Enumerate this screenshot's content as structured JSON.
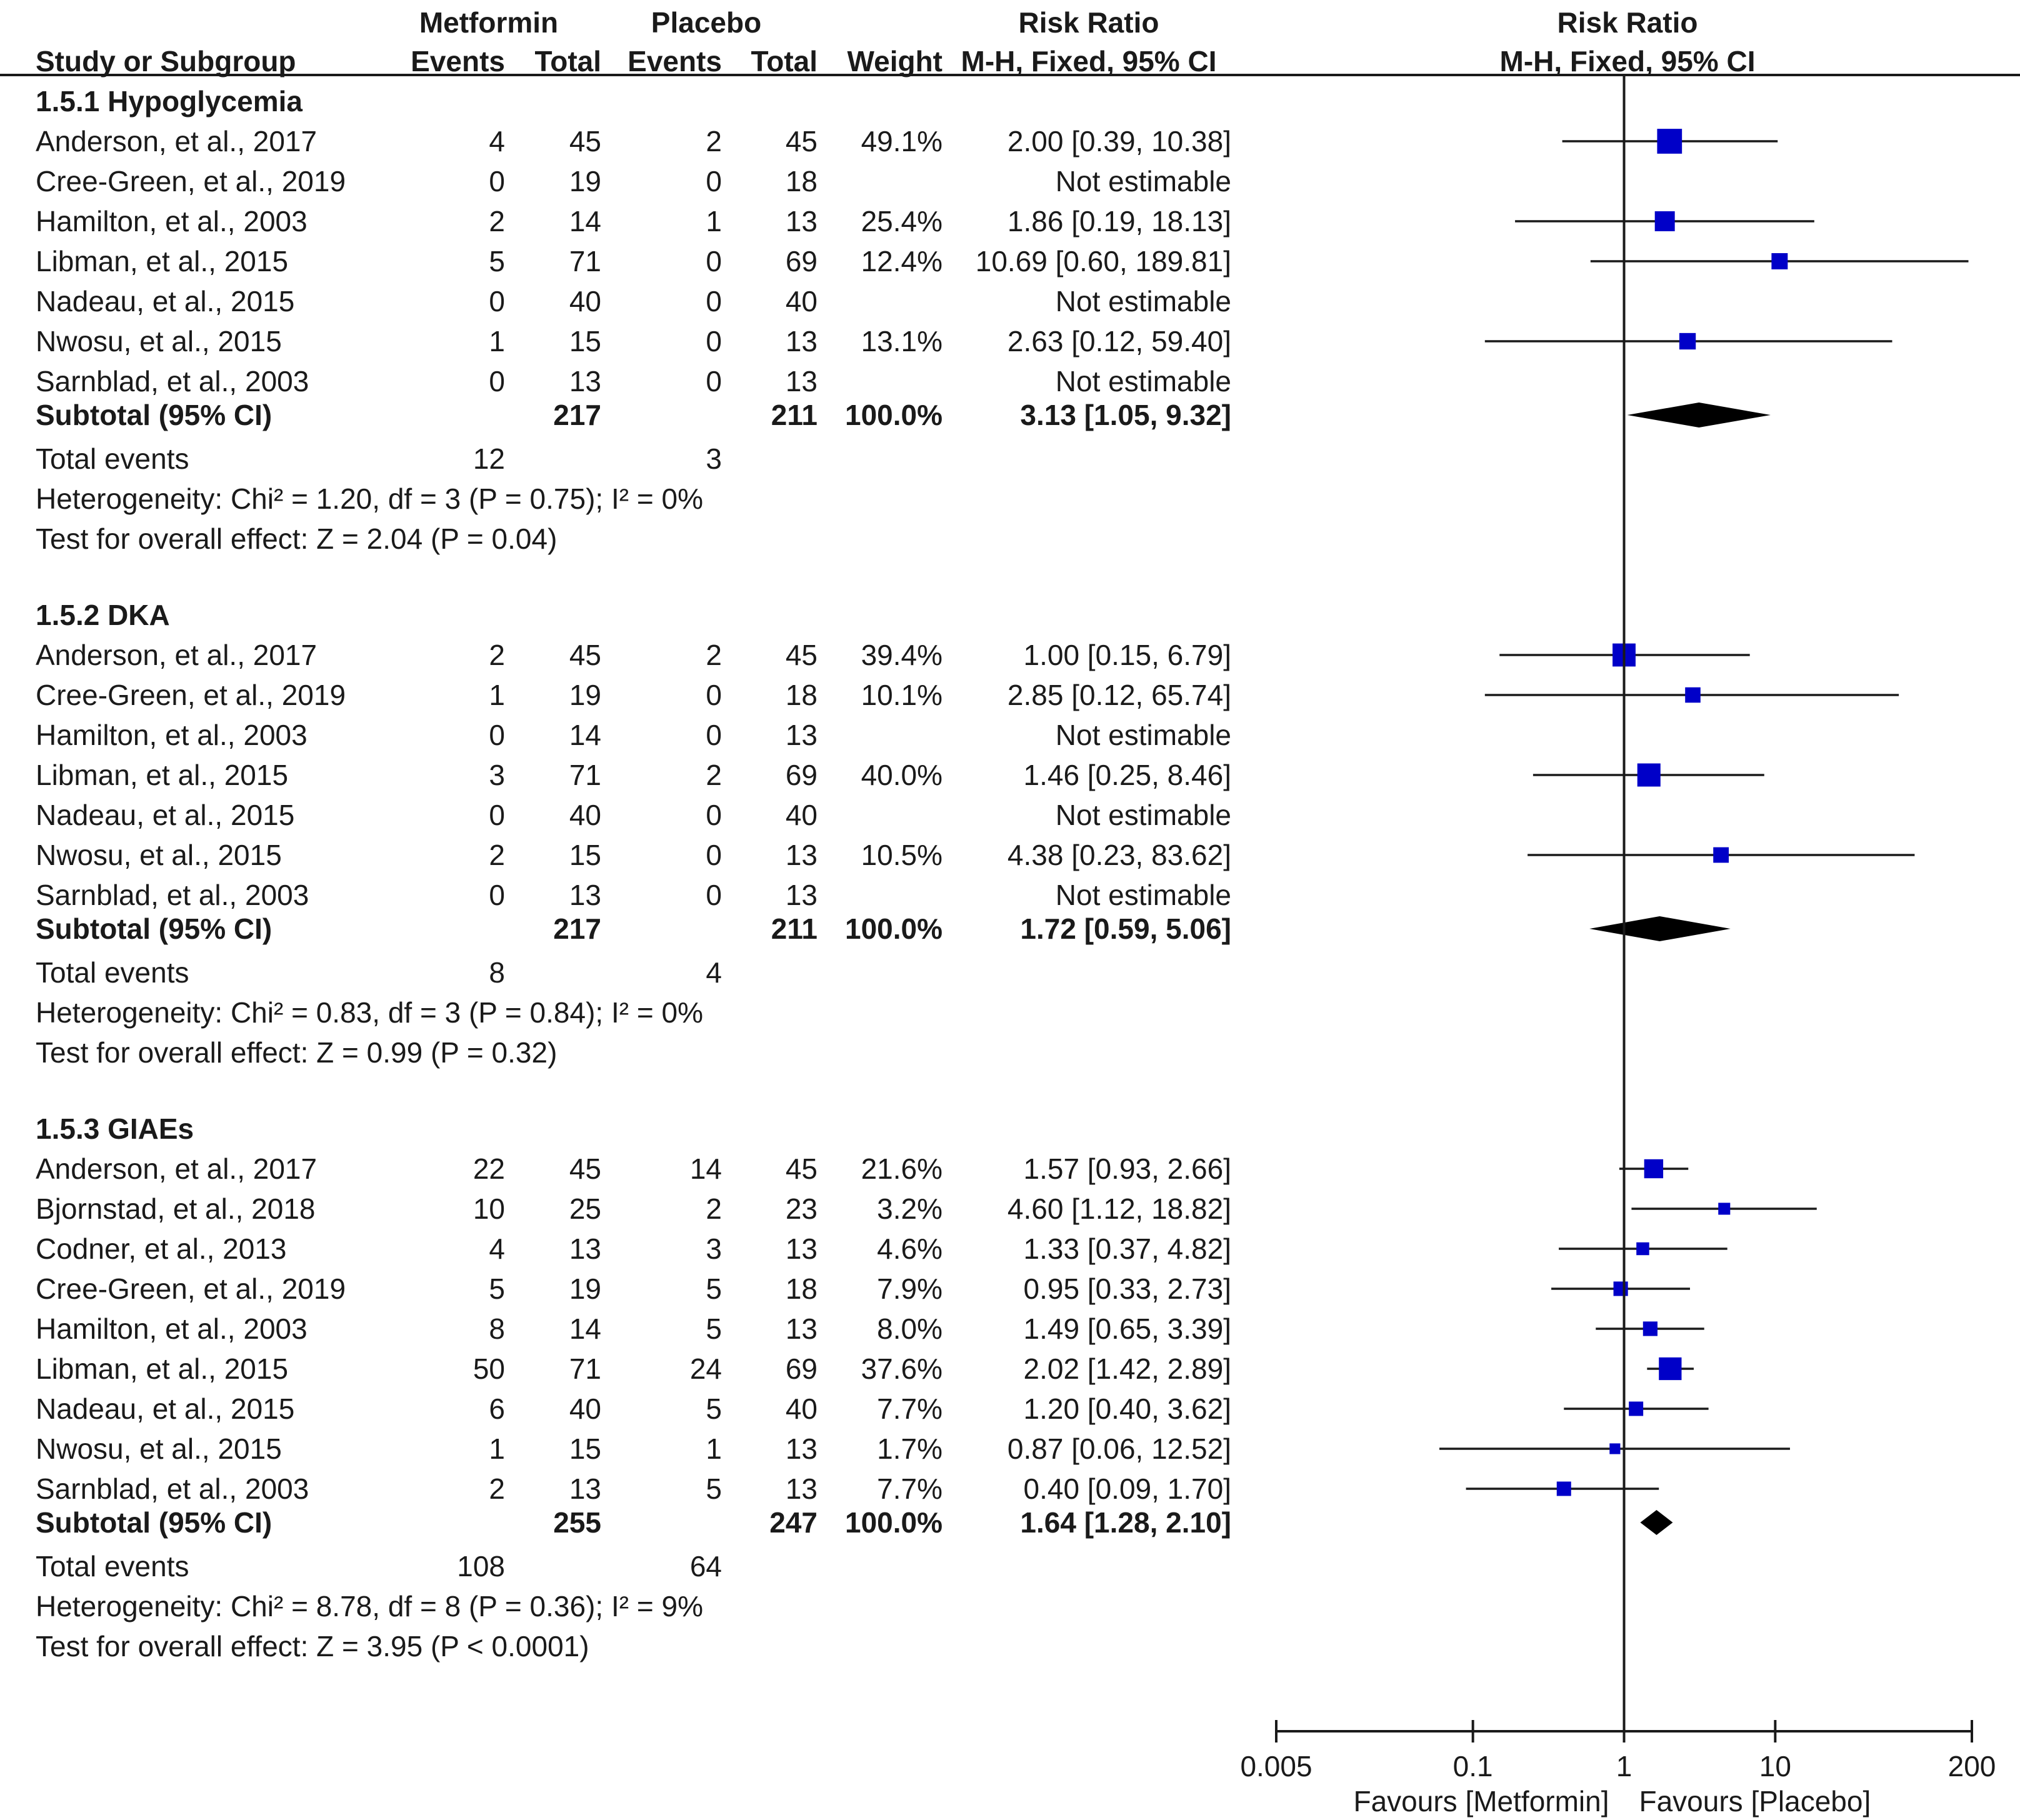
{
  "chart_data": {
    "type": "forest",
    "title": "",
    "headers": {
      "group_metformin": "Metformin",
      "group_placebo": "Placebo",
      "group_rr": "Risk Ratio",
      "study": "Study or Subgroup",
      "events": "Events",
      "total": "Total",
      "weight": "Weight",
      "method": "M-H, Fixed, 95% CI",
      "plot_title": "Risk Ratio",
      "plot_method": "M-H, Fixed, 95% CI"
    },
    "subgroups": [
      {
        "name": "1.5.1 Hypoglycemia",
        "studies": [
          {
            "study": "Anderson, et al., 2017",
            "e1": "4",
            "n1": "45",
            "e2": "2",
            "n2": "45",
            "weight": "49.1%",
            "ci_text": "2.00 [0.39, 10.38]",
            "rr": 2.0,
            "lo": 0.39,
            "hi": 10.38,
            "w": 49.1
          },
          {
            "study": "Cree-Green, et al., 2019",
            "e1": "0",
            "n1": "19",
            "e2": "0",
            "n2": "18",
            "weight": "",
            "ci_text": "Not estimable",
            "rr": null,
            "lo": null,
            "hi": null,
            "w": 0
          },
          {
            "study": "Hamilton, et al., 2003",
            "e1": "2",
            "n1": "14",
            "e2": "1",
            "n2": "13",
            "weight": "25.4%",
            "ci_text": "1.86 [0.19, 18.13]",
            "rr": 1.86,
            "lo": 0.19,
            "hi": 18.13,
            "w": 25.4
          },
          {
            "study": "Libman, et al., 2015",
            "e1": "5",
            "n1": "71",
            "e2": "0",
            "n2": "69",
            "weight": "12.4%",
            "ci_text": "10.69 [0.60, 189.81]",
            "rr": 10.69,
            "lo": 0.6,
            "hi": 189.81,
            "w": 12.4
          },
          {
            "study": "Nadeau, et al., 2015",
            "e1": "0",
            "n1": "40",
            "e2": "0",
            "n2": "40",
            "weight": "",
            "ci_text": "Not estimable",
            "rr": null,
            "lo": null,
            "hi": null,
            "w": 0
          },
          {
            "study": "Nwosu, et al., 2015",
            "e1": "1",
            "n1": "15",
            "e2": "0",
            "n2": "13",
            "weight": "13.1%",
            "ci_text": "2.63 [0.12, 59.40]",
            "rr": 2.63,
            "lo": 0.12,
            "hi": 59.4,
            "w": 13.1
          },
          {
            "study": "Sarnblad, et al., 2003",
            "e1": "0",
            "n1": "13",
            "e2": "0",
            "n2": "13",
            "weight": "",
            "ci_text": "Not estimable",
            "rr": null,
            "lo": null,
            "hi": null,
            "w": 0
          }
        ],
        "subtotal": {
          "label": "Subtotal (95% CI)",
          "n1": "217",
          "n2": "211",
          "weight": "100.0%",
          "ci_text": "3.13 [1.05, 9.32]",
          "rr": 3.13,
          "lo": 1.05,
          "hi": 9.32
        },
        "total_events": {
          "label": "Total events",
          "e1": "12",
          "e2": "3"
        },
        "heterogeneity": "Heterogeneity: Chi² = 1.20, df = 3 (P = 0.75); I² = 0%",
        "overall": "Test for overall effect: Z = 2.04 (P = 0.04)"
      },
      {
        "name": "1.5.2 DKA",
        "studies": [
          {
            "study": "Anderson, et al., 2017",
            "e1": "2",
            "n1": "45",
            "e2": "2",
            "n2": "45",
            "weight": "39.4%",
            "ci_text": "1.00 [0.15, 6.79]",
            "rr": 1.0,
            "lo": 0.15,
            "hi": 6.79,
            "w": 39.4
          },
          {
            "study": "Cree-Green, et al., 2019",
            "e1": "1",
            "n1": "19",
            "e2": "0",
            "n2": "18",
            "weight": "10.1%",
            "ci_text": "2.85 [0.12, 65.74]",
            "rr": 2.85,
            "lo": 0.12,
            "hi": 65.74,
            "w": 10.1
          },
          {
            "study": "Hamilton, et al., 2003",
            "e1": "0",
            "n1": "14",
            "e2": "0",
            "n2": "13",
            "weight": "",
            "ci_text": "Not estimable",
            "rr": null,
            "lo": null,
            "hi": null,
            "w": 0
          },
          {
            "study": "Libman, et al., 2015",
            "e1": "3",
            "n1": "71",
            "e2": "2",
            "n2": "69",
            "weight": "40.0%",
            "ci_text": "1.46 [0.25, 8.46]",
            "rr": 1.46,
            "lo": 0.25,
            "hi": 8.46,
            "w": 40.0
          },
          {
            "study": "Nadeau, et al., 2015",
            "e1": "0",
            "n1": "40",
            "e2": "0",
            "n2": "40",
            "weight": "",
            "ci_text": "Not estimable",
            "rr": null,
            "lo": null,
            "hi": null,
            "w": 0
          },
          {
            "study": "Nwosu, et al., 2015",
            "e1": "2",
            "n1": "15",
            "e2": "0",
            "n2": "13",
            "weight": "10.5%",
            "ci_text": "4.38 [0.23, 83.62]",
            "rr": 4.38,
            "lo": 0.23,
            "hi": 83.62,
            "w": 10.5
          },
          {
            "study": "Sarnblad, et al., 2003",
            "e1": "0",
            "n1": "13",
            "e2": "0",
            "n2": "13",
            "weight": "",
            "ci_text": "Not estimable",
            "rr": null,
            "lo": null,
            "hi": null,
            "w": 0
          }
        ],
        "subtotal": {
          "label": "Subtotal (95% CI)",
          "n1": "217",
          "n2": "211",
          "weight": "100.0%",
          "ci_text": "1.72 [0.59, 5.06]",
          "rr": 1.72,
          "lo": 0.59,
          "hi": 5.06
        },
        "total_events": {
          "label": "Total events",
          "e1": "8",
          "e2": "4"
        },
        "heterogeneity": "Heterogeneity: Chi² = 0.83, df = 3 (P = 0.84); I² = 0%",
        "overall": "Test for overall effect: Z = 0.99 (P = 0.32)"
      },
      {
        "name": "1.5.3 GIAEs",
        "studies": [
          {
            "study": "Anderson, et al., 2017",
            "e1": "22",
            "n1": "45",
            "e2": "14",
            "n2": "45",
            "weight": "21.6%",
            "ci_text": "1.57 [0.93, 2.66]",
            "rr": 1.57,
            "lo": 0.93,
            "hi": 2.66,
            "w": 21.6
          },
          {
            "study": "Bjornstad, et al., 2018",
            "e1": "10",
            "n1": "25",
            "e2": "2",
            "n2": "23",
            "weight": "3.2%",
            "ci_text": "4.60 [1.12, 18.82]",
            "rr": 4.6,
            "lo": 1.12,
            "hi": 18.82,
            "w": 3.2
          },
          {
            "study": "Codner, et al., 2013",
            "e1": "4",
            "n1": "13",
            "e2": "3",
            "n2": "13",
            "weight": "4.6%",
            "ci_text": "1.33 [0.37, 4.82]",
            "rr": 1.33,
            "lo": 0.37,
            "hi": 4.82,
            "w": 4.6
          },
          {
            "study": "Cree-Green, et al., 2019",
            "e1": "5",
            "n1": "19",
            "e2": "5",
            "n2": "18",
            "weight": "7.9%",
            "ci_text": "0.95 [0.33, 2.73]",
            "rr": 0.95,
            "lo": 0.33,
            "hi": 2.73,
            "w": 7.9
          },
          {
            "study": "Hamilton, et al., 2003",
            "e1": "8",
            "n1": "14",
            "e2": "5",
            "n2": "13",
            "weight": "8.0%",
            "ci_text": "1.49 [0.65, 3.39]",
            "rr": 1.49,
            "lo": 0.65,
            "hi": 3.39,
            "w": 8.0
          },
          {
            "study": "Libman, et al., 2015",
            "e1": "50",
            "n1": "71",
            "e2": "24",
            "n2": "69",
            "weight": "37.6%",
            "ci_text": "2.02 [1.42, 2.89]",
            "rr": 2.02,
            "lo": 1.42,
            "hi": 2.89,
            "w": 37.6
          },
          {
            "study": "Nadeau, et al., 2015",
            "e1": "6",
            "n1": "40",
            "e2": "5",
            "n2": "40",
            "weight": "7.7%",
            "ci_text": "1.20 [0.40, 3.62]",
            "rr": 1.2,
            "lo": 0.4,
            "hi": 3.62,
            "w": 7.7
          },
          {
            "study": "Nwosu, et al., 2015",
            "e1": "1",
            "n1": "15",
            "e2": "1",
            "n2": "13",
            "weight": "1.7%",
            "ci_text": "0.87 [0.06, 12.52]",
            "rr": 0.87,
            "lo": 0.06,
            "hi": 12.52,
            "w": 1.7
          },
          {
            "study": "Sarnblad, et al., 2003",
            "e1": "2",
            "n1": "13",
            "e2": "5",
            "n2": "13",
            "weight": "7.7%",
            "ci_text": "0.40 [0.09, 1.70]",
            "rr": 0.4,
            "lo": 0.09,
            "hi": 1.7,
            "w": 7.7
          }
        ],
        "subtotal": {
          "label": "Subtotal (95% CI)",
          "n1": "255",
          "n2": "247",
          "weight": "100.0%",
          "ci_text": "1.64 [1.28, 2.10]",
          "rr": 1.64,
          "lo": 1.28,
          "hi": 2.1
        },
        "total_events": {
          "label": "Total events",
          "e1": "108",
          "e2": "64"
        },
        "heterogeneity": "Heterogeneity: Chi² = 8.78, df = 8 (P = 0.36); I² = 9%",
        "overall": "Test for overall effect: Z = 3.95 (P < 0.0001)"
      }
    ],
    "x_axis": {
      "scale": "log",
      "xlim": [
        0.005,
        200
      ],
      "ticks": [
        0.005,
        0.1,
        1,
        10,
        200
      ],
      "tick_labels": [
        "0.005",
        "0.1",
        "1",
        "10",
        "200"
      ],
      "null_line": 1,
      "favours_left": "Favours [Metformin]",
      "favours_right": "Favours [Placebo]"
    },
    "colors": {
      "study_marker": "#0000c8",
      "diamond": "#000000",
      "line": "#1a1a1a"
    }
  }
}
